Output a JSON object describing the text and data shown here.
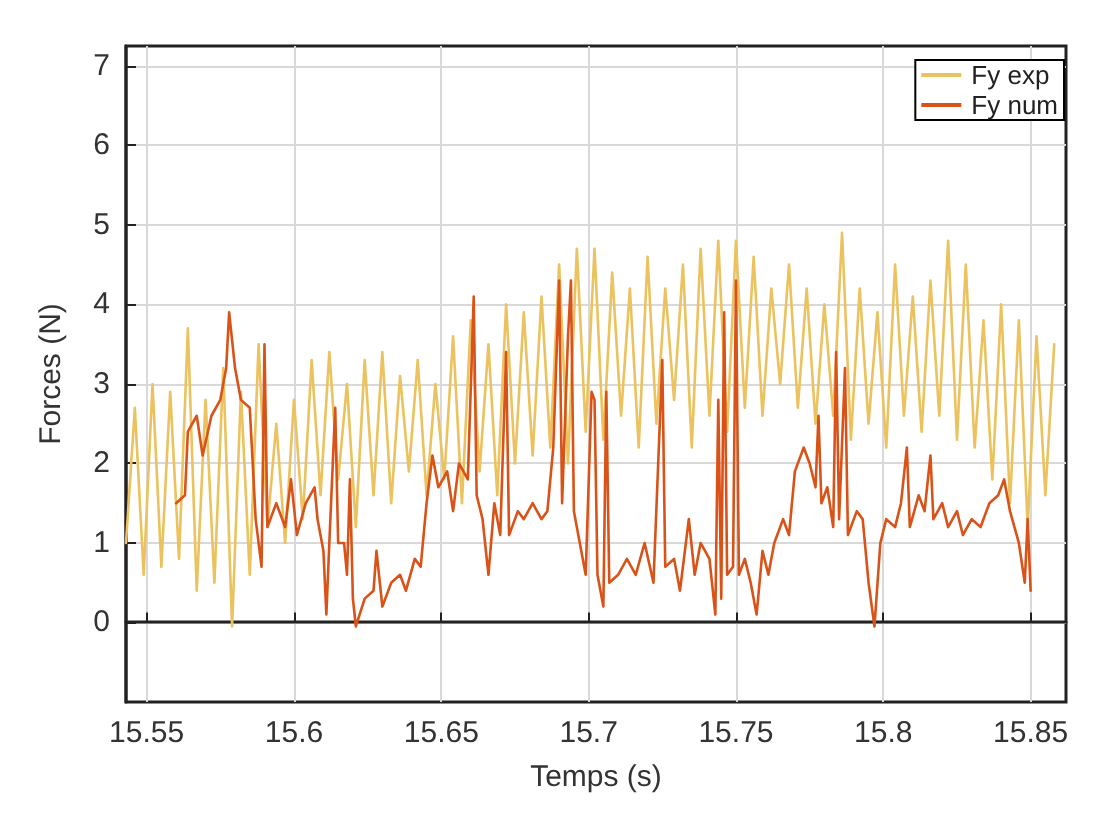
{
  "chart_data": {
    "type": "line",
    "xlabel": "Temps (s)",
    "ylabel": "Forces (N)",
    "xlim": [
      15.543,
      15.862
    ],
    "ylim": [
      -1,
      7.25
    ],
    "xticks": [
      15.55,
      15.6,
      15.65,
      15.7,
      15.75,
      15.8,
      15.85
    ],
    "yticks": [
      0,
      1,
      2,
      3,
      4,
      5,
      6,
      7
    ],
    "grid": true,
    "legend": "top right",
    "marker": "none",
    "line_style": "solid",
    "series": [
      {
        "name": "Fy exp",
        "color": "#ebc25e",
        "x": [
          15.543,
          15.546,
          15.549,
          15.552,
          15.555,
          15.558,
          15.561,
          15.564,
          15.567,
          15.57,
          15.573,
          15.576,
          15.579,
          15.582,
          15.585,
          15.588,
          15.591,
          15.594,
          15.597,
          15.6,
          15.603,
          15.606,
          15.609,
          15.612,
          15.615,
          15.618,
          15.621,
          15.624,
          15.627,
          15.63,
          15.633,
          15.636,
          15.639,
          15.642,
          15.645,
          15.648,
          15.651,
          15.654,
          15.657,
          15.66,
          15.663,
          15.666,
          15.669,
          15.672,
          15.675,
          15.678,
          15.681,
          15.684,
          15.687,
          15.69,
          15.693,
          15.696,
          15.699,
          15.702,
          15.705,
          15.708,
          15.711,
          15.714,
          15.717,
          15.72,
          15.723,
          15.726,
          15.729,
          15.732,
          15.735,
          15.738,
          15.741,
          15.744,
          15.747,
          15.75,
          15.753,
          15.756,
          15.759,
          15.762,
          15.765,
          15.768,
          15.771,
          15.774,
          15.777,
          15.78,
          15.783,
          15.786,
          15.789,
          15.792,
          15.795,
          15.798,
          15.801,
          15.804,
          15.807,
          15.81,
          15.813,
          15.816,
          15.819,
          15.822,
          15.825,
          15.828,
          15.831,
          15.834,
          15.837,
          15.84,
          15.843,
          15.846,
          15.849,
          15.852,
          15.855,
          15.858
        ],
        "values": [
          1.0,
          2.7,
          0.6,
          3.0,
          0.7,
          2.9,
          0.8,
          3.7,
          0.4,
          2.8,
          0.5,
          3.2,
          -0.05,
          2.9,
          0.6,
          3.5,
          1.2,
          2.5,
          1.0,
          2.8,
          1.3,
          3.3,
          1.6,
          3.4,
          1.8,
          3.0,
          1.2,
          3.3,
          1.6,
          3.4,
          1.5,
          3.1,
          1.9,
          3.3,
          1.6,
          3.0,
          1.8,
          3.6,
          1.5,
          3.8,
          1.9,
          3.5,
          1.6,
          4.0,
          2.0,
          3.9,
          2.1,
          4.1,
          2.2,
          4.5,
          2.0,
          4.7,
          2.4,
          4.7,
          2.3,
          4.4,
          2.6,
          4.2,
          2.2,
          4.6,
          2.5,
          4.2,
          2.8,
          4.5,
          2.2,
          4.7,
          2.6,
          4.8,
          2.4,
          4.8,
          2.7,
          4.6,
          2.6,
          4.2,
          3.0,
          4.5,
          2.7,
          4.2,
          2.5,
          4.0,
          2.6,
          4.9,
          2.3,
          4.2,
          2.5,
          3.9,
          2.2,
          4.5,
          2.6,
          4.1,
          2.4,
          4.3,
          2.6,
          4.8,
          2.3,
          4.5,
          2.2,
          3.8,
          1.8,
          4.0,
          1.5,
          3.8,
          1.2,
          3.6,
          1.6,
          3.5
        ]
      },
      {
        "name": "Fy num",
        "color": "#d95319",
        "x": [
          15.56,
          15.563,
          15.564,
          15.567,
          15.569,
          15.572,
          15.575,
          15.577,
          15.578,
          15.58,
          15.582,
          15.585,
          15.587,
          15.589,
          15.59,
          15.591,
          15.594,
          15.597,
          15.599,
          15.601,
          15.604,
          15.607,
          15.608,
          15.61,
          15.611,
          15.612,
          15.614,
          15.615,
          15.617,
          15.618,
          15.619,
          15.62,
          15.621,
          15.624,
          15.627,
          15.628,
          15.63,
          15.633,
          15.636,
          15.638,
          15.641,
          15.643,
          15.645,
          15.647,
          15.649,
          15.652,
          15.654,
          15.656,
          15.659,
          15.661,
          15.662,
          15.664,
          15.666,
          15.668,
          15.67,
          15.672,
          15.673,
          15.676,
          15.678,
          15.681,
          15.684,
          15.686,
          15.688,
          15.69,
          15.691,
          15.693,
          15.694,
          15.695,
          15.697,
          15.699,
          15.701,
          15.702,
          15.703,
          15.705,
          15.706,
          15.707,
          15.71,
          15.713,
          15.716,
          15.719,
          15.722,
          15.725,
          15.726,
          15.729,
          15.731,
          15.734,
          15.736,
          15.738,
          15.741,
          15.743,
          15.744,
          15.745,
          15.746,
          15.747,
          15.749,
          15.75,
          15.751,
          15.753,
          15.755,
          15.757,
          15.759,
          15.761,
          15.763,
          15.766,
          15.768,
          15.77,
          15.773,
          15.775,
          15.777,
          15.778,
          15.779,
          15.781,
          15.783,
          15.784,
          15.785,
          15.787,
          15.788,
          15.791,
          15.793,
          15.795,
          15.797,
          15.799,
          15.801,
          15.804,
          15.806,
          15.808,
          15.809,
          15.812,
          15.814,
          15.816,
          15.817,
          15.82,
          15.822,
          15.825,
          15.827,
          15.83,
          15.833,
          15.836,
          15.839,
          15.841,
          15.843,
          15.846,
          15.848,
          15.849,
          15.85
        ],
        "values": [
          1.5,
          1.6,
          2.4,
          2.6,
          2.1,
          2.6,
          2.8,
          3.2,
          3.9,
          3.2,
          2.8,
          2.7,
          1.3,
          0.7,
          3.5,
          1.2,
          1.5,
          1.2,
          1.8,
          1.1,
          1.5,
          1.7,
          1.3,
          0.9,
          0.1,
          1.0,
          2.7,
          1.0,
          1.0,
          0.6,
          1.8,
          0.3,
          -0.05,
          0.3,
          0.4,
          0.9,
          0.2,
          0.5,
          0.6,
          0.4,
          0.8,
          0.7,
          1.5,
          2.1,
          1.7,
          1.9,
          1.4,
          2.0,
          1.8,
          4.1,
          1.6,
          1.3,
          0.6,
          1.5,
          1.1,
          3.4,
          1.1,
          1.4,
          1.3,
          1.5,
          1.3,
          1.4,
          2.2,
          4.3,
          1.5,
          3.6,
          4.3,
          1.4,
          1.0,
          0.6,
          2.9,
          2.8,
          0.6,
          0.2,
          2.9,
          0.5,
          0.6,
          0.8,
          0.6,
          1.0,
          0.5,
          3.3,
          0.7,
          0.8,
          0.4,
          1.3,
          0.6,
          1.0,
          0.8,
          0.1,
          2.8,
          0.3,
          3.9,
          0.6,
          0.7,
          4.3,
          0.6,
          0.8,
          0.5,
          0.1,
          0.9,
          0.6,
          1.0,
          1.3,
          1.1,
          1.9,
          2.2,
          2.0,
          1.7,
          2.6,
          1.5,
          1.7,
          1.2,
          3.4,
          1.3,
          3.2,
          1.1,
          1.4,
          1.3,
          0.5,
          -0.05,
          1.0,
          1.3,
          1.2,
          1.5,
          2.2,
          1.2,
          1.6,
          1.4,
          2.1,
          1.3,
          1.5,
          1.2,
          1.4,
          1.1,
          1.3,
          1.2,
          1.5,
          1.6,
          1.8,
          1.4,
          1.0,
          0.5,
          1.3,
          0.4
        ]
      }
    ]
  }
}
